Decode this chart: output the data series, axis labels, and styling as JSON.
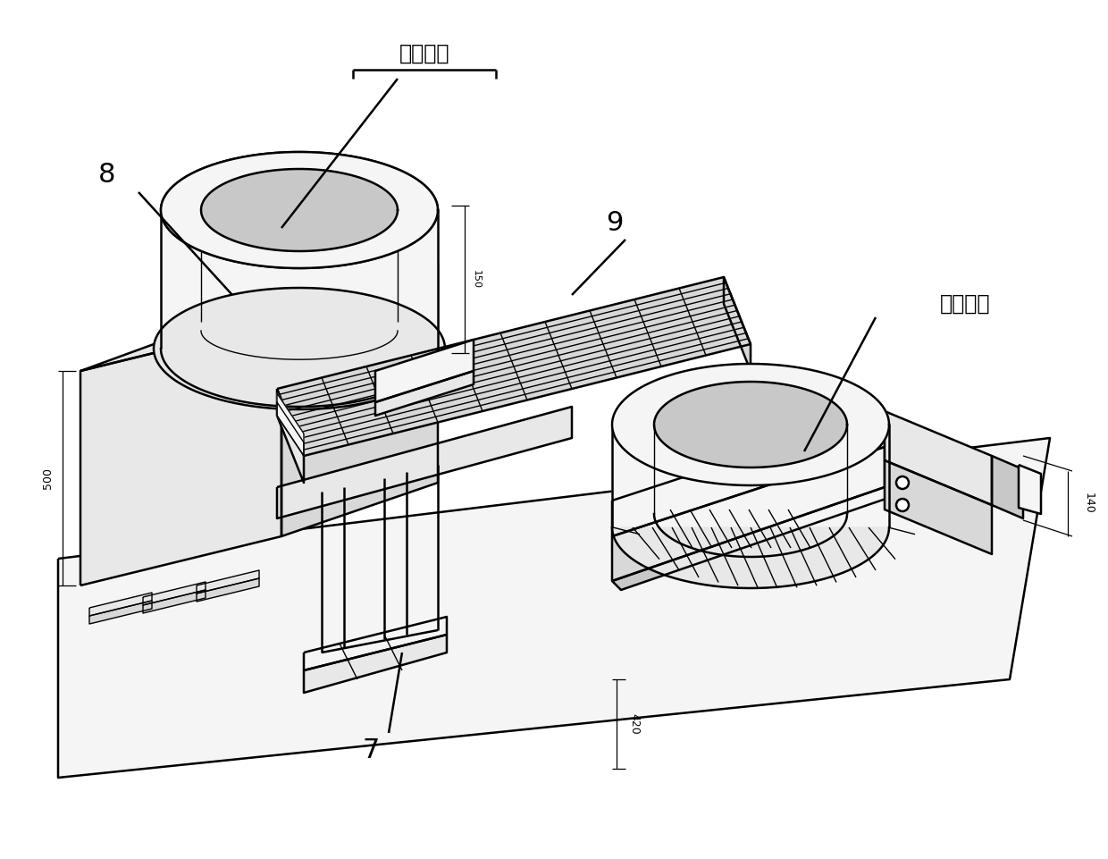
{
  "bg_color": "#ffffff",
  "line_color": "#000000",
  "figsize": [
    12.4,
    9.61
  ],
  "dpi": 100,
  "lw_main": 1.8,
  "lw_thin": 1.0,
  "lw_dim": 0.9,
  "face_light": "#f5f5f5",
  "face_mid": "#e8e8e8",
  "face_dark": "#d8d8d8",
  "face_darker": "#c8c8c8",
  "hatch_color": "#888888",
  "labels": {
    "already_processed": "已加工件",
    "to_be_processed": "待加工件",
    "num_8": "8",
    "num_9": "9",
    "num_7": "7",
    "dim_500": "500",
    "dim_420": "420",
    "dim_140": "140",
    "dim_150": "150"
  }
}
